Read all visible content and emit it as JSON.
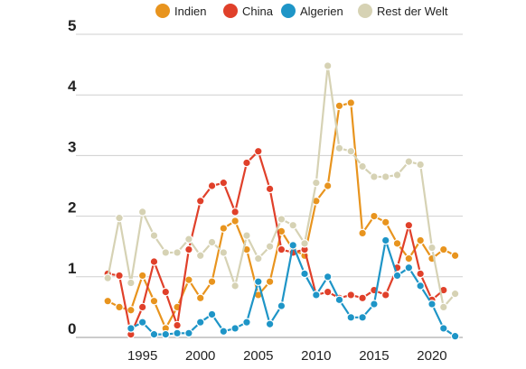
{
  "chart_data": {
    "type": "line",
    "title": "",
    "xlabel": "",
    "ylabel": "",
    "xlim": [
      1990.5,
      2022.5
    ],
    "ylim": [
      0,
      5
    ],
    "x_ticks": [
      1995,
      2000,
      2005,
      2010,
      2015,
      2020
    ],
    "y_ticks": [
      0,
      1,
      2,
      3,
      4,
      5
    ],
    "grid": "horizontal",
    "legend_position": "top-right",
    "x": [
      1992,
      1993,
      1994,
      1995,
      1996,
      1997,
      1998,
      1999,
      2000,
      2001,
      2002,
      2003,
      2004,
      2005,
      2006,
      2007,
      2008,
      2009,
      2010,
      2011,
      2012,
      2013,
      2014,
      2015,
      2016,
      2017,
      2018,
      2019,
      2020,
      2021,
      2022
    ],
    "series": [
      {
        "name": "Indien",
        "color": "#e8941e",
        "values": [
          0.6,
          0.5,
          0.45,
          1.02,
          0.6,
          0.15,
          0.5,
          0.95,
          0.65,
          0.92,
          1.8,
          1.92,
          1.45,
          0.7,
          0.92,
          1.75,
          1.45,
          1.35,
          2.25,
          2.5,
          3.82,
          3.87,
          1.72,
          2.0,
          1.9,
          1.55,
          1.3,
          1.6,
          1.3,
          1.45,
          1.35
        ]
      },
      {
        "name": "China",
        "color": "#e0402a",
        "values": [
          1.05,
          1.02,
          0.05,
          0.5,
          1.25,
          0.75,
          0.2,
          1.45,
          2.25,
          2.5,
          2.55,
          2.07,
          2.88,
          3.07,
          2.45,
          1.45,
          1.4,
          1.45,
          0.7,
          0.75,
          0.65,
          0.7,
          0.65,
          0.78,
          0.7,
          1.15,
          1.85,
          1.05,
          0.62,
          0.78,
          null
        ]
      },
      {
        "name": "Algerien",
        "color": "#1e95c7",
        "values": [
          null,
          null,
          0.15,
          0.25,
          0.05,
          0.05,
          0.07,
          0.07,
          0.25,
          0.38,
          0.1,
          0.15,
          0.25,
          0.92,
          0.22,
          0.52,
          1.52,
          1.05,
          0.7,
          1.0,
          0.62,
          0.33,
          0.33,
          0.55,
          1.6,
          1.02,
          1.15,
          0.85,
          0.55,
          0.15,
          0.02
        ]
      },
      {
        "name": "Rest der Welt",
        "color": "#d6d2b4",
        "values": [
          0.98,
          1.97,
          0.9,
          2.07,
          1.68,
          1.4,
          1.4,
          1.62,
          1.35,
          1.57,
          1.4,
          0.85,
          1.68,
          1.3,
          1.5,
          1.95,
          1.85,
          1.55,
          2.55,
          4.48,
          3.12,
          3.07,
          2.82,
          2.65,
          2.65,
          2.68,
          2.9,
          2.85,
          1.48,
          0.5,
          0.72
        ]
      }
    ]
  }
}
